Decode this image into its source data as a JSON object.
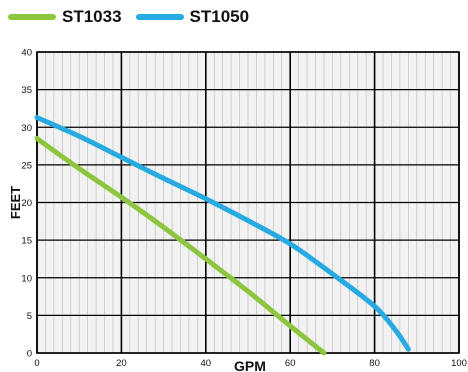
{
  "chart_data": {
    "type": "line",
    "title": "",
    "xlabel": "GPM",
    "ylabel": "FEET",
    "xlim": [
      0,
      100
    ],
    "ylim": [
      0,
      40
    ],
    "xticks": [
      "0",
      "20",
      "40",
      "60",
      "80",
      "100"
    ],
    "yticks": [
      "0",
      "5",
      "10",
      "15",
      "20",
      "25",
      "30",
      "35",
      "40"
    ],
    "grid": true,
    "legend": "top-left",
    "series": [
      {
        "name": "ST1033",
        "color": "#8cc63f",
        "points": [
          [
            0,
            28.5
          ],
          [
            10,
            24.5
          ],
          [
            20,
            20.7
          ],
          [
            30,
            16.7
          ],
          [
            40,
            12.5
          ],
          [
            50,
            8.2
          ],
          [
            60,
            3.6
          ],
          [
            68,
            0
          ]
        ]
      },
      {
        "name": "ST1050",
        "color": "#27aae1",
        "points": [
          [
            0,
            31.3
          ],
          [
            10,
            28.8
          ],
          [
            20,
            26.0
          ],
          [
            30,
            23.2
          ],
          [
            40,
            20.5
          ],
          [
            50,
            17.6
          ],
          [
            60,
            14.5
          ],
          [
            70,
            10.5
          ],
          [
            80,
            6.2
          ],
          [
            85,
            3.0
          ],
          [
            88,
            0.5
          ]
        ]
      }
    ]
  }
}
